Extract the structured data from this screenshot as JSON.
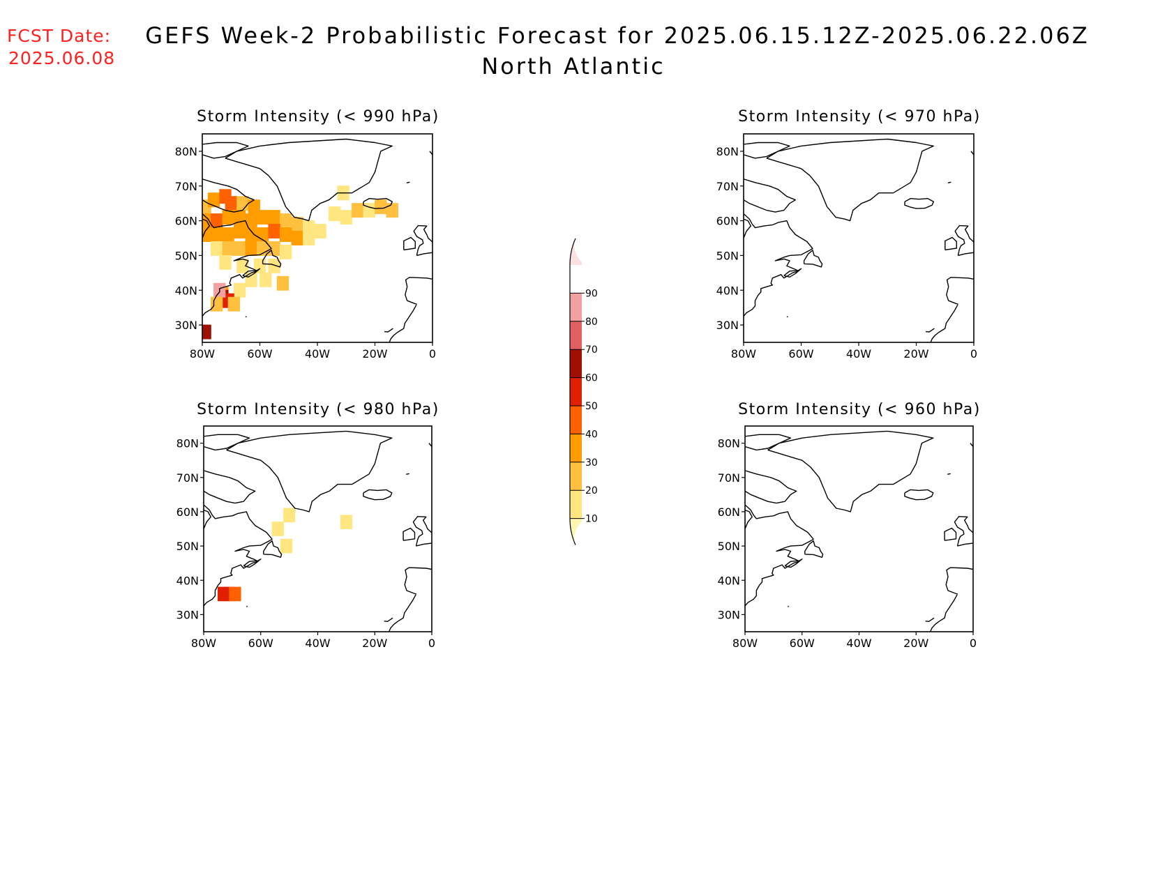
{
  "forecast_date": {
    "label": "FCST Date:",
    "value": "2025.06.08"
  },
  "title": {
    "line1": "GEFS Week-2 Probabilistic Forecast for 2025.06.15.12Z-2025.06.22.06Z",
    "line2": "North Atlantic"
  },
  "map": {
    "extent": {
      "lon_min": -80,
      "lon_max": 0,
      "lat_min": 25,
      "lat_max": 85
    },
    "x_ticks": [
      {
        "lon": -80,
        "label": "80W"
      },
      {
        "lon": -60,
        "label": "60W"
      },
      {
        "lon": -40,
        "label": "40W"
      },
      {
        "lon": -20,
        "label": "20W"
      },
      {
        "lon": 0,
        "label": "0"
      }
    ],
    "y_ticks": [
      {
        "lat": 30,
        "label": "30N"
      },
      {
        "lat": 40,
        "label": "40N"
      },
      {
        "lat": 50,
        "label": "50N"
      },
      {
        "lat": 60,
        "label": "60N"
      },
      {
        "lat": 70,
        "label": "70N"
      },
      {
        "lat": 80,
        "label": "80N"
      }
    ]
  },
  "panels": [
    {
      "title": "Storm Intensity (< 990 hPa)",
      "threshold_hpa": 990,
      "probability_cells": [
        {
          "lon": -79,
          "lat": 64,
          "p": 25
        },
        {
          "lon": -76,
          "lat": 66,
          "p": 30
        },
        {
          "lon": -72,
          "lat": 67,
          "p": 45
        },
        {
          "lon": -70,
          "lat": 65,
          "p": 40
        },
        {
          "lon": -66,
          "lat": 65,
          "p": 25
        },
        {
          "lon": -62,
          "lat": 64,
          "p": 30
        },
        {
          "lon": -79,
          "lat": 60,
          "p": 35
        },
        {
          "lon": -75,
          "lat": 60,
          "p": 40
        },
        {
          "lon": -71,
          "lat": 61,
          "p": 35
        },
        {
          "lon": -67,
          "lat": 61,
          "p": 35
        },
        {
          "lon": -63,
          "lat": 60,
          "p": 30
        },
        {
          "lon": -59,
          "lat": 61,
          "p": 35
        },
        {
          "lon": -55,
          "lat": 61,
          "p": 30
        },
        {
          "lon": -51,
          "lat": 60,
          "p": 25
        },
        {
          "lon": -47,
          "lat": 59,
          "p": 25
        },
        {
          "lon": -43,
          "lat": 58,
          "p": 15
        },
        {
          "lon": -39,
          "lat": 57,
          "p": 10
        },
        {
          "lon": -79,
          "lat": 56,
          "p": 35
        },
        {
          "lon": -75,
          "lat": 56,
          "p": 30
        },
        {
          "lon": -71,
          "lat": 56,
          "p": 35
        },
        {
          "lon": -67,
          "lat": 57,
          "p": 30
        },
        {
          "lon": -63,
          "lat": 56,
          "p": 35
        },
        {
          "lon": -59,
          "lat": 56,
          "p": 30
        },
        {
          "lon": -55,
          "lat": 57,
          "p": 40
        },
        {
          "lon": -51,
          "lat": 56,
          "p": 35
        },
        {
          "lon": -47,
          "lat": 55,
          "p": 30
        },
        {
          "lon": -43,
          "lat": 55,
          "p": 15
        },
        {
          "lon": -75,
          "lat": 52,
          "p": 15
        },
        {
          "lon": -71,
          "lat": 52,
          "p": 20
        },
        {
          "lon": -67,
          "lat": 52,
          "p": 25
        },
        {
          "lon": -63,
          "lat": 52,
          "p": 30
        },
        {
          "lon": -59,
          "lat": 52,
          "p": 25
        },
        {
          "lon": -55,
          "lat": 52,
          "p": 20
        },
        {
          "lon": -51,
          "lat": 51,
          "p": 10
        },
        {
          "lon": -72,
          "lat": 48,
          "p": 10
        },
        {
          "lon": -66,
          "lat": 47,
          "p": 15
        },
        {
          "lon": -60,
          "lat": 47,
          "p": 10
        },
        {
          "lon": -55,
          "lat": 47,
          "p": 10
        },
        {
          "lon": -63,
          "lat": 43,
          "p": 10
        },
        {
          "lon": -58,
          "lat": 43,
          "p": 15
        },
        {
          "lon": -52,
          "lat": 42,
          "p": 20
        },
        {
          "lon": -67,
          "lat": 40,
          "p": 10
        },
        {
          "lon": -34,
          "lat": 62,
          "p": 15
        },
        {
          "lon": -30,
          "lat": 61,
          "p": 10
        },
        {
          "lon": -26,
          "lat": 63,
          "p": 20
        },
        {
          "lon": -22,
          "lat": 63,
          "p": 15
        },
        {
          "lon": -18,
          "lat": 64,
          "p": 20
        },
        {
          "lon": -14,
          "lat": 63,
          "p": 25
        },
        {
          "lon": -31,
          "lat": 68,
          "p": 10
        },
        {
          "lon": -73,
          "lat": 39,
          "p": 30
        },
        {
          "lon": -73,
          "lat": 38,
          "p": 65
        },
        {
          "lon": -71,
          "lat": 37,
          "p": 55
        },
        {
          "lon": -74,
          "lat": 40,
          "p": 85
        },
        {
          "lon": -75,
          "lat": 36,
          "p": 25
        },
        {
          "lon": -69,
          "lat": 36,
          "p": 25
        },
        {
          "lon": -79,
          "lat": 28,
          "p": 65
        }
      ]
    },
    {
      "title": "Storm Intensity (< 970 hPa)",
      "threshold_hpa": 970,
      "probability_cells": []
    },
    {
      "title": "Storm Intensity (< 980 hPa)",
      "threshold_hpa": 980,
      "probability_cells": [
        {
          "lon": -71,
          "lat": 36,
          "p": 35
        },
        {
          "lon": -73,
          "lat": 36,
          "p": 55
        },
        {
          "lon": -69,
          "lat": 36,
          "p": 45
        },
        {
          "lon": -51,
          "lat": 50,
          "p": 10
        },
        {
          "lon": -54,
          "lat": 55,
          "p": 10
        },
        {
          "lon": -50,
          "lat": 59,
          "p": 10
        },
        {
          "lon": -30,
          "lat": 57,
          "p": 10
        }
      ]
    },
    {
      "title": "Storm Intensity (< 960 hPa)",
      "threshold_hpa": 960,
      "probability_cells": []
    }
  ],
  "colorbar": {
    "levels": [
      "10",
      "20",
      "30",
      "40",
      "50",
      "60",
      "70",
      "80",
      "90"
    ],
    "colors": [
      "#fff6b0",
      "#ffe680",
      "#ffc040",
      "#ff9d00",
      "#ff6000",
      "#e02000",
      "#a01000",
      "#e06060",
      "#f2a0a0",
      "#fde0e0"
    ]
  },
  "colors": {
    "forecast_date_text": "#ff2020",
    "coastline": "#000000"
  }
}
